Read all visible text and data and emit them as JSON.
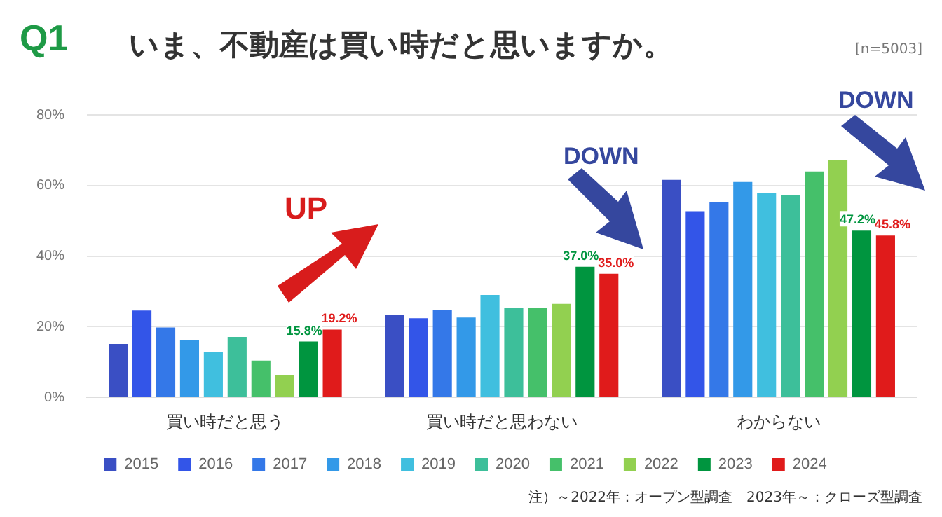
{
  "chart_data": {
    "type": "bar",
    "title": "Q1",
    "subtitle": "いま、不動産は買い時だと思いますか。",
    "categories": [
      "買い時だと思う",
      "買い時だと思わない",
      "わからない"
    ],
    "series": [
      {
        "name": "2015",
        "color": "#3a4fc4",
        "values": [
          15.1,
          23.3,
          61.6
        ]
      },
      {
        "name": "2016",
        "color": "#3355e8",
        "values": [
          24.6,
          22.4,
          52.7
        ]
      },
      {
        "name": "2017",
        "color": "#3478e8",
        "values": [
          19.8,
          24.7,
          55.4
        ]
      },
      {
        "name": "2018",
        "color": "#3399e8",
        "values": [
          16.2,
          22.6,
          61.0
        ]
      },
      {
        "name": "2019",
        "color": "#40bfdf",
        "values": [
          12.9,
          29.0,
          58.0
        ]
      },
      {
        "name": "2020",
        "color": "#3dbf9a",
        "values": [
          17.1,
          25.4,
          57.4
        ]
      },
      {
        "name": "2021",
        "color": "#45c06a",
        "values": [
          10.4,
          25.4,
          64.0
        ]
      },
      {
        "name": "2022",
        "color": "#92d050",
        "values": [
          6.2,
          26.5,
          67.2
        ]
      },
      {
        "name": "2023",
        "color": "#00953f",
        "values": [
          15.8,
          37.0,
          47.2
        ],
        "value_labels": [
          "15.8%",
          "37.0%",
          "47.2%"
        ]
      },
      {
        "name": "2024",
        "color": "#e01b1b",
        "values": [
          19.2,
          35.0,
          45.8
        ],
        "value_labels": [
          "19.2%",
          "35.0%",
          "45.8%"
        ]
      }
    ],
    "ylim": [
      0,
      80
    ],
    "yticks": [
      {
        "value": 0,
        "label": "0%"
      },
      {
        "value": 20,
        "label": "20%"
      },
      {
        "value": 40,
        "label": "40%"
      },
      {
        "value": 60,
        "label": "60%"
      },
      {
        "value": 80,
        "label": "80%"
      }
    ],
    "grid": "y",
    "legend": "bottom",
    "annotations": [
      "[n=5003]",
      "UP",
      "DOWN",
      "DOWN",
      "注）～2022年：オープン型調査　2023年～：クローズ型調査"
    ]
  }
}
